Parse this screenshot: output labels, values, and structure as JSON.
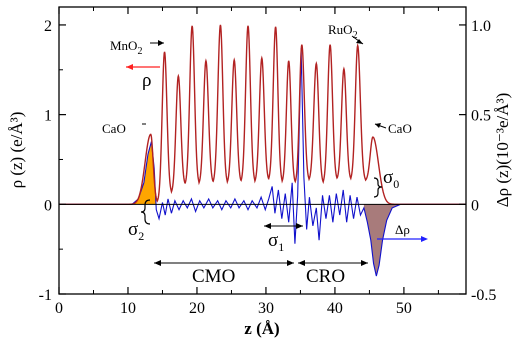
{
  "chart_data": {
    "type": "line",
    "xlabel": "z (Å)",
    "ylabel_left": "ρ (z) (e/Å³)",
    "ylabel_right": "Δρ (z)(10⁻³e/Å³)",
    "xlim": [
      0,
      59
    ],
    "ylim_left": [
      -1,
      2.2
    ],
    "ylim_right": [
      -0.5,
      1.1
    ],
    "x_ticks": [
      0,
      10,
      20,
      30,
      40,
      50
    ],
    "y_ticks_left": [
      -1,
      0,
      1,
      2
    ],
    "y_ticks_right": [
      -0.5,
      0,
      0.5,
      1.0
    ],
    "x_tick_labels": [
      "0",
      "10",
      "20",
      "30",
      "40",
      "50"
    ],
    "y_tick_labels_left": [
      "-1",
      "0",
      "1",
      "2"
    ],
    "y_tick_labels_right": [
      "-0.5",
      "0",
      "0.5",
      "1.0"
    ],
    "series": [
      {
        "name": "ρ",
        "axis": "left",
        "color": "#b22222",
        "peaks": [
          {
            "z": 13.3,
            "value": 0.78
          },
          {
            "z": 15.3,
            "value": 1.7
          },
          {
            "z": 17.3,
            "value": 1.43
          },
          {
            "z": 19.3,
            "value": 1.99
          },
          {
            "z": 21.3,
            "value": 1.6
          },
          {
            "z": 23.4,
            "value": 2.0
          },
          {
            "z": 25.4,
            "value": 1.61
          },
          {
            "z": 27.4,
            "value": 1.99
          },
          {
            "z": 29.4,
            "value": 1.63
          },
          {
            "z": 31.4,
            "value": 1.98
          },
          {
            "z": 33.3,
            "value": 1.6
          },
          {
            "z": 35.2,
            "value": 1.78
          },
          {
            "z": 37.3,
            "value": 1.57
          },
          {
            "z": 39.3,
            "value": 1.78
          },
          {
            "z": 41.3,
            "value": 1.51
          },
          {
            "z": 43.3,
            "value": 1.77
          },
          {
            "z": 45.5,
            "value": 0.75
          }
        ],
        "valleys": [
          0.02,
          0.12,
          0.21,
          0.22,
          0.23,
          0.23,
          0.24,
          0.24,
          0.26,
          0.24,
          0.23,
          0.26,
          0.23,
          0.27,
          0.27,
          0.26
        ]
      },
      {
        "name": "Δρ",
        "axis": "right",
        "color": "#1010cc",
        "points": [
          [
            0,
            0
          ],
          [
            10.6,
            0
          ],
          [
            11.5,
            0.03
          ],
          [
            12.3,
            0.12
          ],
          [
            12.9,
            0.28
          ],
          [
            13.4,
            0.35
          ],
          [
            13.8,
            0.2
          ],
          [
            14.1,
            -0.03
          ],
          [
            14.5,
            -0.08
          ],
          [
            15,
            0.01
          ],
          [
            15.4,
            -0.06
          ],
          [
            15.8,
            0.03
          ],
          [
            16.3,
            -0.05
          ],
          [
            16.8,
            0.02
          ],
          [
            17.4,
            -0.03
          ],
          [
            18,
            0.02
          ],
          [
            18.6,
            -0.02
          ],
          [
            19.2,
            0.03
          ],
          [
            19.8,
            -0.04
          ],
          [
            20.4,
            0.02
          ],
          [
            21,
            -0.02
          ],
          [
            21.7,
            0.03
          ],
          [
            22.3,
            -0.02
          ],
          [
            23,
            0.02
          ],
          [
            23.6,
            -0.03
          ],
          [
            24.2,
            0.02
          ],
          [
            24.9,
            -0.02
          ],
          [
            25.5,
            0.03
          ],
          [
            26.1,
            -0.02
          ],
          [
            26.8,
            0.02
          ],
          [
            27.4,
            -0.03
          ],
          [
            28,
            0.02
          ],
          [
            28.7,
            -0.02
          ],
          [
            29.3,
            0.04
          ],
          [
            29.9,
            -0.03
          ],
          [
            30.4,
            0.03
          ],
          [
            30.9,
            0.1
          ],
          [
            31.3,
            -0.05
          ],
          [
            31.8,
            0.08
          ],
          [
            32.3,
            -0.08
          ],
          [
            32.8,
            0.06
          ],
          [
            33.3,
            -0.1
          ],
          [
            33.8,
            0.12
          ],
          [
            34.2,
            -0.22
          ],
          [
            34.6,
            0.05
          ],
          [
            35.1,
            0.87
          ],
          [
            35.5,
            0.15
          ],
          [
            35.9,
            -0.14
          ],
          [
            36.3,
            0.04
          ],
          [
            36.8,
            -0.12
          ],
          [
            37.3,
            -0.02
          ],
          [
            37.7,
            -0.2
          ],
          [
            38.2,
            0.05
          ],
          [
            38.7,
            -0.08
          ],
          [
            39.2,
            0.05
          ],
          [
            39.7,
            -0.1
          ],
          [
            40.2,
            0.06
          ],
          [
            40.7,
            -0.06
          ],
          [
            41.2,
            0.08
          ],
          [
            41.7,
            -0.1
          ],
          [
            42.2,
            0.05
          ],
          [
            42.7,
            -0.08
          ],
          [
            43.2,
            0.04
          ],
          [
            43.7,
            -0.06
          ],
          [
            44.2,
            -0.02
          ],
          [
            44.7,
            -0.1
          ],
          [
            45.2,
            -0.2
          ],
          [
            45.6,
            -0.33
          ],
          [
            46.0,
            -0.4
          ],
          [
            46.4,
            -0.34
          ],
          [
            46.9,
            -0.2
          ],
          [
            47.5,
            -0.09
          ],
          [
            48.3,
            -0.02
          ],
          [
            49.5,
            0
          ],
          [
            59,
            0
          ]
        ]
      }
    ],
    "annotations": {
      "mno2": "MnO",
      "mno2_sub": "2",
      "ruo2": "RuO",
      "ruo2_sub": "2",
      "cao_left": "CaO",
      "cao_right": "CaO",
      "rho_label": "ρ",
      "delta_rho_label": "Δρ",
      "cmo": "CMO",
      "cro": "CRO",
      "sigma0": "σ",
      "sigma0_sub": "0",
      "sigma1": "σ",
      "sigma1_sub": "1",
      "sigma2": "σ",
      "sigma2_sub": "2"
    },
    "fill_colors": {
      "left_interface": "#ffa500",
      "right_interface": "#a87b7b"
    },
    "grid": false
  }
}
